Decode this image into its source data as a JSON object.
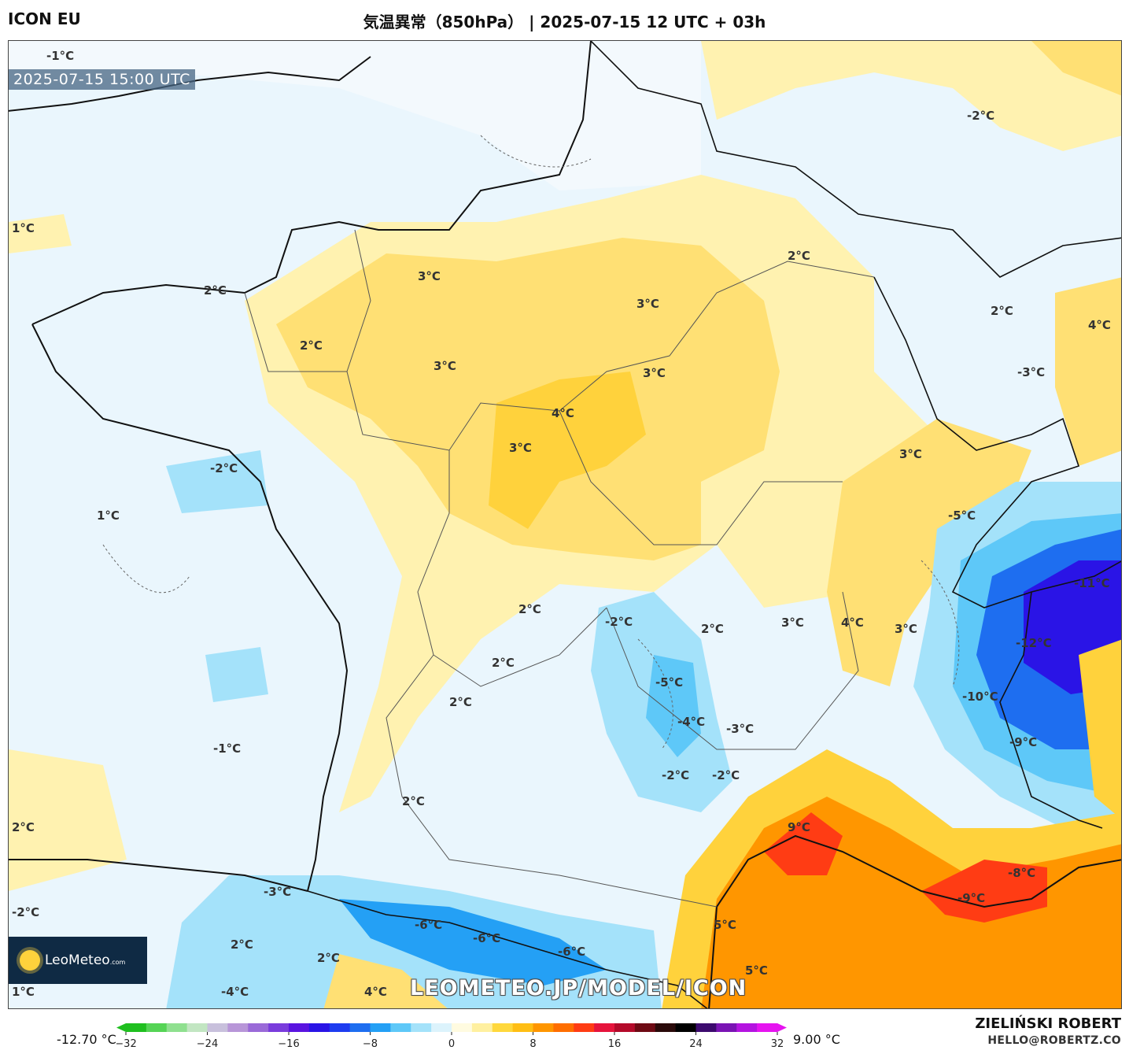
{
  "header": {
    "model": "ICON EU",
    "title": "気温異常（850hPa） | 2025-07-15 12 UTC + 03h"
  },
  "map": {
    "valid_time": "2025-07-15 15:00 UTC",
    "watermark": "LEOMETEO.JP/MODEL/ICON",
    "logo_text": "LeoMeteo",
    "logo_suffix": ".com",
    "labels": [
      {
        "text": "-1°C"
      },
      {
        "text": "-2°C"
      },
      {
        "text": "1°C"
      },
      {
        "text": "2°C"
      },
      {
        "text": "3°C"
      },
      {
        "text": "2°C"
      },
      {
        "text": "3°C"
      },
      {
        "text": "3°C"
      },
      {
        "text": "3°C"
      },
      {
        "text": "2°C"
      },
      {
        "text": "2°C"
      },
      {
        "text": "4°C"
      },
      {
        "text": "-3°C"
      },
      {
        "text": "4°C"
      },
      {
        "text": "3°C"
      },
      {
        "text": "-2°C"
      },
      {
        "text": "1°C"
      },
      {
        "text": "3°C"
      },
      {
        "text": "-5°C"
      },
      {
        "text": "-11°C"
      },
      {
        "text": "2°C"
      },
      {
        "text": "-2°C"
      },
      {
        "text": "2°C"
      },
      {
        "text": "3°C"
      },
      {
        "text": "4°C"
      },
      {
        "text": "3°C"
      },
      {
        "text": "-12°C"
      },
      {
        "text": "2°C"
      },
      {
        "text": "-5°C"
      },
      {
        "text": "2°C"
      },
      {
        "text": "-10°C"
      },
      {
        "text": "-4°C"
      },
      {
        "text": "-3°C"
      },
      {
        "text": "-1°C"
      },
      {
        "text": "-9°C"
      },
      {
        "text": "-2°C"
      },
      {
        "text": "-2°C"
      },
      {
        "text": "2°C"
      },
      {
        "text": "2°C"
      },
      {
        "text": "9°C"
      },
      {
        "text": "-3°C"
      },
      {
        "text": "-2°C"
      },
      {
        "text": "-8°C"
      },
      {
        "text": "-9°C"
      },
      {
        "text": "-6°C"
      },
      {
        "text": "-6°C"
      },
      {
        "text": "5°C"
      },
      {
        "text": "2°C"
      },
      {
        "text": "2°C"
      },
      {
        "text": "-6°C"
      },
      {
        "text": "5°C"
      },
      {
        "text": "1°C"
      },
      {
        "text": "-4°C"
      },
      {
        "text": "4°C"
      }
    ]
  },
  "colorbar": {
    "min_label": "-12.70 °C",
    "max_label": "9.00 °C",
    "ticks": [
      "−32",
      "−24",
      "−16",
      "−8",
      "0",
      "8",
      "16",
      "24",
      "32"
    ],
    "colors": [
      "#1fbf1f",
      "#55d455",
      "#8fe08f",
      "#c2e6c2",
      "#c8c0dc",
      "#b896d8",
      "#9a6ad8",
      "#7a3cdc",
      "#5a14e0",
      "#2a14e6",
      "#1e3cf0",
      "#1e6ef0",
      "#24a0f5",
      "#5ec8f8",
      "#a4e2fa",
      "#dcf3fc",
      "#fffbe0",
      "#fff0a0",
      "#ffd83c",
      "#ffbe14",
      "#ff9600",
      "#ff6e00",
      "#ff3c14",
      "#e6143c",
      "#b40a2a",
      "#6e0a14",
      "#2a0a0a",
      "#000000",
      "#3c0a6e",
      "#7a14b4",
      "#b414e0",
      "#e614f0"
    ]
  },
  "credit": {
    "name": "ZIELIŃSKI ROBERT",
    "email": "HELLO@ROBERTZ.CO"
  }
}
